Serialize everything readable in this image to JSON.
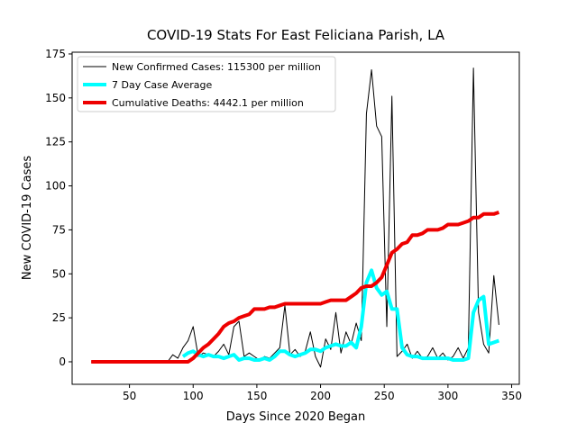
{
  "chart_data": {
    "type": "line",
    "title": "COVID-19 Stats For East Feliciana Parish, LA",
    "xlabel": "Days Since 2020 Began",
    "ylabel": "New COVID-19 Cases",
    "x": [
      20,
      24,
      28,
      32,
      36,
      40,
      44,
      48,
      52,
      56,
      60,
      64,
      68,
      72,
      76,
      80,
      84,
      88,
      92,
      96,
      100,
      104,
      108,
      112,
      116,
      120,
      124,
      128,
      132,
      136,
      140,
      144,
      148,
      152,
      156,
      160,
      164,
      168,
      172,
      176,
      180,
      184,
      188,
      192,
      196,
      200,
      204,
      208,
      212,
      216,
      220,
      224,
      228,
      232,
      236,
      240,
      244,
      248,
      252,
      256,
      260,
      264,
      268,
      272,
      276,
      280,
      284,
      288,
      292,
      296,
      300,
      304,
      308,
      312,
      316,
      320,
      324,
      328,
      332,
      336,
      340
    ],
    "series": [
      {
        "name": "New Confirmed Cases: 115300 per million",
        "color": "#000000",
        "width": 1,
        "values": [
          0,
          0,
          0,
          0,
          0,
          0,
          0,
          0,
          0,
          0,
          0,
          0,
          0,
          0,
          0,
          0,
          4,
          2,
          8,
          12,
          20,
          3,
          5,
          4,
          3,
          6,
          10,
          4,
          20,
          23,
          3,
          5,
          3,
          1,
          3,
          2,
          5,
          8,
          32,
          4,
          7,
          3,
          6,
          17,
          3,
          -3,
          13,
          7,
          28,
          5,
          17,
          10,
          22,
          12,
          141,
          166,
          134,
          128,
          20,
          151,
          3,
          6,
          10,
          2,
          6,
          2,
          3,
          8,
          2,
          5,
          1,
          3,
          8,
          2,
          8,
          167,
          28,
          10,
          5,
          49,
          21
        ]
      },
      {
        "name": "7 Day Case Average",
        "color": "#00ffff",
        "width": 4,
        "values": [
          null,
          null,
          null,
          null,
          null,
          null,
          null,
          null,
          null,
          null,
          null,
          null,
          null,
          null,
          null,
          null,
          null,
          null,
          3,
          5,
          6,
          4,
          3,
          4,
          3,
          3,
          2,
          3,
          4,
          1,
          2,
          2,
          1,
          1,
          2,
          1,
          3,
          6,
          6,
          4,
          3,
          4,
          5,
          7,
          7,
          6,
          8,
          9,
          10,
          9,
          9,
          11,
          8,
          20,
          45,
          52,
          42,
          38,
          40,
          30,
          30,
          8,
          4,
          3,
          3,
          2,
          2,
          2,
          2,
          2,
          2,
          1,
          1,
          1,
          2,
          28,
          35,
          37,
          10,
          11,
          12
        ]
      },
      {
        "name": "Cumulative Deaths: 4442.1 per million",
        "color": "#ee0000",
        "width": 4,
        "values": [
          0,
          0,
          0,
          0,
          0,
          0,
          0,
          0,
          0,
          0,
          0,
          0,
          0,
          0,
          0,
          0,
          0,
          0,
          0,
          0,
          2,
          5,
          8,
          10,
          13,
          16,
          20,
          22,
          23,
          25,
          26,
          27,
          30,
          30,
          30,
          31,
          31,
          32,
          33,
          33,
          33,
          33,
          33,
          33,
          33,
          33,
          34,
          35,
          35,
          35,
          35,
          37,
          39,
          42,
          43,
          43,
          45,
          48,
          55,
          62,
          64,
          67,
          68,
          72,
          72,
          73,
          75,
          75,
          75,
          76,
          78,
          78,
          78,
          79,
          80,
          82,
          82,
          84,
          84,
          84,
          85
        ]
      }
    ],
    "xlim": [
      5,
      356
    ],
    "xticks": [
      50,
      100,
      150,
      200,
      250,
      300,
      350
    ],
    "ylim": [
      -12.8,
      176
    ],
    "yticks": [
      0,
      25,
      50,
      75,
      100,
      125,
      150,
      175
    ],
    "legend": "upper left"
  }
}
